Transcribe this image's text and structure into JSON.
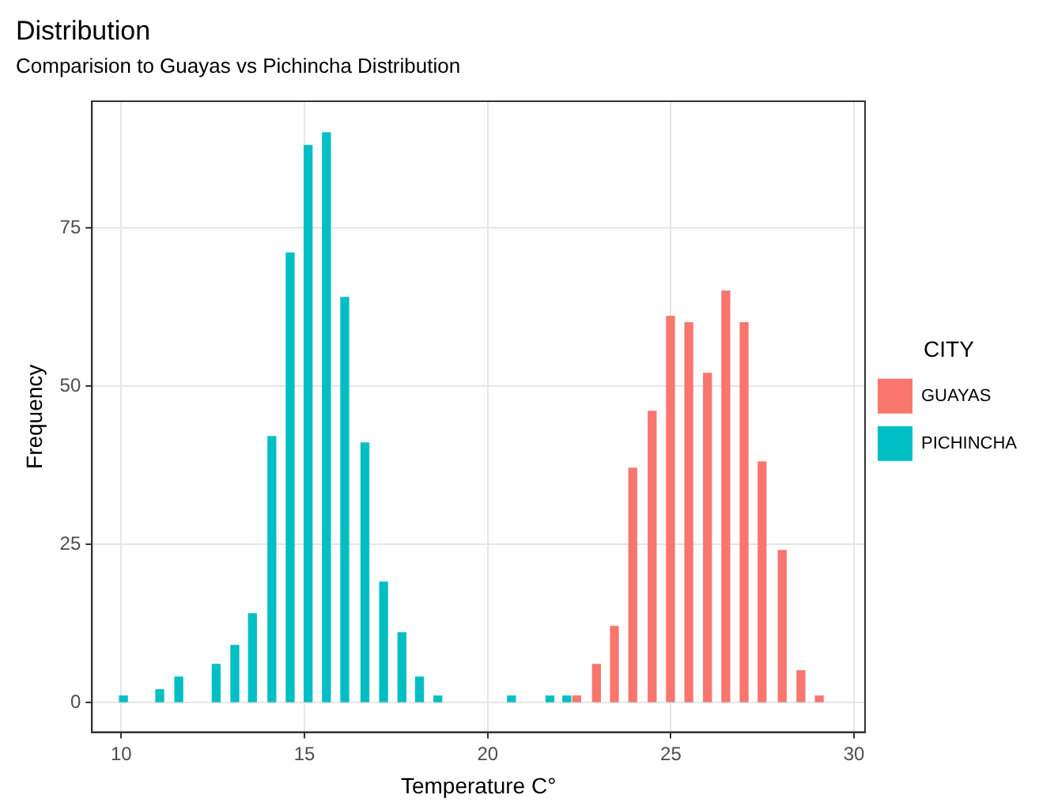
{
  "chart_data": {
    "type": "bar",
    "title": "Distribution",
    "subtitle": "Comparision to Guayas vs Pichincha Distribution",
    "xlabel": "Temperature C°",
    "ylabel": "Frequency",
    "legend_title": "CITY",
    "series": [
      {
        "name": "GUAYAS",
        "color": "#f8766d",
        "x": [
          22.43,
          22.97,
          23.46,
          23.96,
          24.49,
          24.99,
          25.49,
          26.0,
          26.5,
          27.0,
          27.49,
          28.04,
          28.55,
          29.05
        ],
        "values": [
          1,
          6,
          12,
          37,
          46,
          61,
          60,
          52,
          65,
          60,
          38,
          24,
          5,
          1
        ]
      },
      {
        "name": "PICHINCHA",
        "color": "#00bfc4",
        "x": [
          10.06,
          11.05,
          11.57,
          12.59,
          13.1,
          13.58,
          14.11,
          14.61,
          15.1,
          15.6,
          16.1,
          16.65,
          17.16,
          17.66,
          18.14,
          18.64,
          20.65,
          21.7,
          22.16
        ],
        "values": [
          1,
          2,
          4,
          6,
          9,
          14,
          42,
          71,
          88,
          90,
          64,
          41,
          19,
          11,
          4,
          1,
          1,
          1,
          1
        ]
      }
    ],
    "xlim": [
      9.2,
      30.3
    ],
    "xticks": [
      10,
      15,
      20,
      25,
      30
    ],
    "ylim": [
      -4.7,
      95
    ],
    "yticks": [
      0,
      25,
      50,
      75
    ],
    "grid": true,
    "legend": "right"
  }
}
